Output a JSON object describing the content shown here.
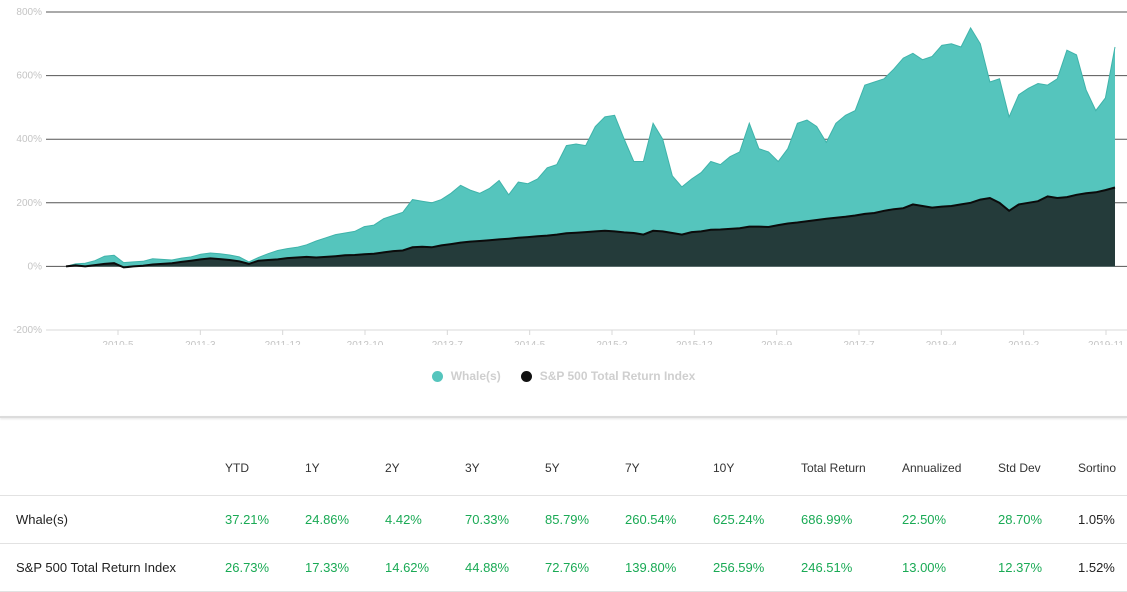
{
  "chart_data": {
    "type": "area",
    "x_ticks": [
      "2010-5",
      "2011-3",
      "2011-12",
      "2012-10",
      "2013-7",
      "2014-5",
      "2015-2",
      "2015-12",
      "2016-9",
      "2017-7",
      "2018-4",
      "2019-2",
      "2019-11"
    ],
    "y_ticks": [
      "800%",
      "600%",
      "400%",
      "200%",
      "0%",
      "-200%"
    ],
    "ylim": [
      -200,
      800
    ],
    "grid": true,
    "legend_position": "bottom",
    "series": [
      {
        "name": "Whale(s)",
        "color": "#55c5bd",
        "values": [
          0,
          8,
          10,
          18,
          32,
          35,
          12,
          14,
          16,
          24,
          22,
          20,
          26,
          30,
          38,
          42,
          40,
          36,
          30,
          14,
          28,
          40,
          50,
          56,
          60,
          68,
          80,
          90,
          100,
          105,
          110,
          125,
          130,
          150,
          160,
          170,
          210,
          205,
          200,
          210,
          230,
          255,
          240,
          230,
          245,
          270,
          225,
          265,
          260,
          275,
          310,
          320,
          380,
          385,
          380,
          440,
          470,
          475,
          400,
          330,
          330,
          450,
          400,
          285,
          250,
          275,
          295,
          330,
          320,
          345,
          360,
          450,
          370,
          360,
          330,
          370,
          450,
          460,
          440,
          390,
          450,
          475,
          490,
          570,
          580,
          590,
          620,
          655,
          670,
          650,
          660,
          695,
          700,
          690,
          750,
          700,
          580,
          590,
          470,
          540,
          560,
          575,
          570,
          590,
          680,
          665,
          555,
          490,
          530,
          690
        ]
      },
      {
        "name": "S&P 500 Total Return Index",
        "color": "#243b3a",
        "values": [
          0,
          3,
          0,
          4,
          8,
          10,
          -3,
          0,
          2,
          6,
          8,
          10,
          14,
          18,
          22,
          25,
          23,
          20,
          16,
          8,
          18,
          20,
          22,
          26,
          28,
          30,
          28,
          30,
          32,
          35,
          36,
          38,
          40,
          44,
          48,
          50,
          60,
          62,
          60,
          66,
          70,
          75,
          78,
          80,
          82,
          85,
          87,
          90,
          92,
          95,
          97,
          100,
          104,
          106,
          108,
          110,
          112,
          110,
          107,
          105,
          100,
          112,
          110,
          105,
          100,
          108,
          110,
          115,
          116,
          118,
          120,
          125,
          125,
          124,
          130,
          135,
          138,
          142,
          146,
          150,
          153,
          156,
          160,
          165,
          168,
          175,
          180,
          183,
          195,
          190,
          185,
          188,
          190,
          195,
          200,
          210,
          215,
          200,
          175,
          195,
          200,
          205,
          220,
          215,
          218,
          225,
          230,
          233,
          240,
          248
        ]
      }
    ]
  },
  "table": {
    "headers": [
      "",
      "YTD",
      "1Y",
      "2Y",
      "3Y",
      "5Y",
      "7Y",
      "10Y",
      "Total Return",
      "Annualized",
      "Std Dev",
      "Sortino"
    ],
    "rows": [
      {
        "name": "Whale(s)",
        "values": [
          "37.21%",
          "24.86%",
          "4.42%",
          "70.33%",
          "85.79%",
          "260.54%",
          "625.24%",
          "686.99%",
          "22.50%",
          "28.70%",
          "1.05%"
        ]
      },
      {
        "name": "S&P 500 Total Return Index",
        "values": [
          "26.73%",
          "17.33%",
          "14.62%",
          "44.88%",
          "72.76%",
          "139.80%",
          "256.59%",
          "246.51%",
          "13.00%",
          "12.37%",
          "1.52%"
        ]
      }
    ]
  }
}
